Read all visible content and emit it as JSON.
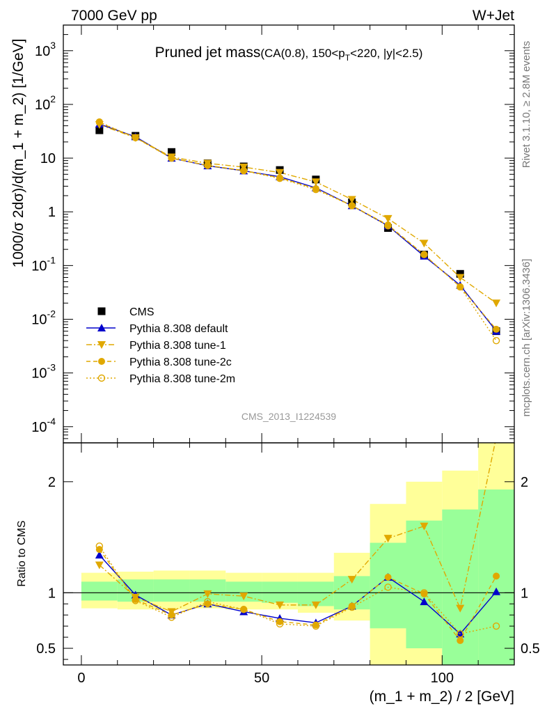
{
  "header": {
    "left_label": "7000 GeV pp",
    "right_label": "W+Jet"
  },
  "side_labels": {
    "rivet": "Rivet 3.1.10, ≥ 2.8M events",
    "mcplots": "mcplots.cern.ch [arXiv:1306.3436]"
  },
  "analysis_id": "CMS_2013_I1224539",
  "colors": {
    "default": "#0000cc",
    "tunes": "#e0a800",
    "band_outer": "#ffff99",
    "band_inner": "#99ff99",
    "cms": "#000000"
  },
  "chart_data": [
    {
      "type": "line",
      "title_main": "Pruned jet mass",
      "title_sub": "(CA(0.8), 150<p_T<220, |y|<2.5)",
      "ylabel": "1000/σ 2dσ)/d(m_1 + m_2) [1/GeV]",
      "yscale": "log",
      "ylim": [
        5e-05,
        3000
      ],
      "xlim": [
        -5,
        120
      ],
      "ytick_labels": [
        {
          "base": "10",
          "exp": "-4",
          "value": 0.0001
        },
        {
          "base": "10",
          "exp": "-3",
          "value": 0.001
        },
        {
          "base": "10",
          "exp": "-2",
          "value": 0.01
        },
        {
          "base": "10",
          "exp": "-1",
          "value": 0.1
        },
        {
          "base": "1",
          "exp": "",
          "value": 1
        },
        {
          "base": "10",
          "exp": "",
          "value": 10
        },
        {
          "base": "10",
          "exp": "2",
          "value": 100
        },
        {
          "base": "10",
          "exp": "3",
          "value": 1000
        }
      ],
      "legend_position": "bottom-left",
      "x": [
        5,
        15,
        25,
        35,
        45,
        55,
        65,
        75,
        85,
        95,
        105,
        115
      ],
      "series": [
        {
          "name": "CMS",
          "style": "square",
          "values": [
            33,
            26,
            13,
            8,
            7,
            6,
            4,
            1.5,
            0.5,
            0.16,
            0.07,
            0.006
          ]
        },
        {
          "name": "Pythia 8.308 default",
          "style": "triangle-up",
          "values": [
            43,
            25,
            10,
            7.2,
            5.8,
            4.5,
            2.8,
            1.3,
            0.55,
            0.15,
            0.043,
            0.006
          ]
        },
        {
          "name": "Pythia 8.308 tune-1",
          "style": "triangle-down",
          "values": [
            42,
            24,
            10.5,
            8,
            6.8,
            5.4,
            3.6,
            1.7,
            0.75,
            0.26,
            0.06,
            0.02
          ]
        },
        {
          "name": "Pythia 8.308 tune-2c",
          "style": "circle-filled",
          "values": [
            46,
            24,
            10,
            7.3,
            5.9,
            4.3,
            2.7,
            1.3,
            0.57,
            0.16,
            0.04,
            0.0065
          ]
        },
        {
          "name": "Pythia 8.308 tune-2m",
          "style": "circle-open",
          "values": [
            47,
            24,
            10,
            7.3,
            5.8,
            4.2,
            2.6,
            1.3,
            0.55,
            0.16,
            0.04,
            0.004
          ]
        }
      ]
    },
    {
      "type": "line",
      "ylabel": "Ratio to CMS",
      "xlabel": "(m_1 + m_2) / 2 [GeV]",
      "ylim": [
        0.35,
        2.35
      ],
      "xlim": [
        -5,
        120
      ],
      "yticks": [
        0.5,
        1,
        2
      ],
      "ytick_labels": [
        "0.5",
        "1",
        "2"
      ],
      "xticks": [
        0,
        50,
        100
      ],
      "xtick_labels": [
        "0",
        "50",
        "100"
      ],
      "bin_edges": [
        0,
        10,
        20,
        30,
        40,
        50,
        60,
        70,
        80,
        90,
        100,
        110,
        120
      ],
      "band_outer": [
        [
          0.86,
          1.18
        ],
        [
          0.85,
          1.19
        ],
        [
          0.85,
          1.2
        ],
        [
          0.86,
          1.2
        ],
        [
          0.85,
          1.18
        ],
        [
          0.85,
          1.18
        ],
        [
          0.82,
          1.18
        ],
        [
          0.75,
          1.36
        ],
        [
          0.35,
          1.8
        ],
        [
          0.35,
          2.0
        ],
        [
          0.35,
          2.1
        ],
        [
          0.35,
          2.35
        ]
      ],
      "band_inner": [
        [
          0.93,
          1.1
        ],
        [
          0.92,
          1.12
        ],
        [
          0.92,
          1.12
        ],
        [
          0.92,
          1.12
        ],
        [
          0.92,
          1.1
        ],
        [
          0.91,
          1.1
        ],
        [
          0.88,
          1.1
        ],
        [
          0.85,
          1.15
        ],
        [
          0.68,
          1.45
        ],
        [
          0.5,
          1.65
        ],
        [
          0.35,
          1.75
        ],
        [
          0.35,
          1.93
        ]
      ],
      "x": [
        5,
        15,
        25,
        35,
        45,
        55,
        65,
        75,
        85,
        95,
        105,
        115
      ],
      "series": [
        {
          "name": "Pythia 8.308 default",
          "values": [
            1.34,
            0.98,
            0.8,
            0.9,
            0.83,
            0.77,
            0.73,
            0.88,
            1.14,
            0.92,
            0.63,
            1.01
          ]
        },
        {
          "name": "Pythia 8.308 tune-1",
          "values": [
            1.25,
            0.96,
            0.83,
            0.99,
            0.97,
            0.89,
            0.89,
            1.12,
            1.49,
            1.6,
            0.86,
            2.4
          ]
        },
        {
          "name": "Pythia 8.308 tune-2c",
          "values": [
            1.39,
            0.94,
            0.8,
            0.9,
            0.85,
            0.74,
            0.71,
            0.88,
            1.14,
            0.99,
            0.57,
            1.15
          ]
        },
        {
          "name": "Pythia 8.308 tune-2m",
          "values": [
            1.42,
            0.93,
            0.78,
            0.92,
            0.85,
            0.72,
            0.7,
            0.87,
            1.05,
            1.0,
            0.63,
            0.7
          ]
        }
      ]
    }
  ]
}
